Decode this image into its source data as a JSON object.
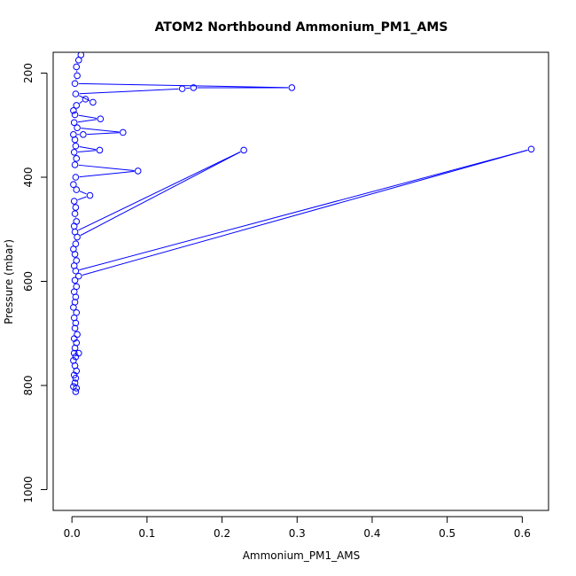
{
  "chart_data": {
    "type": "line",
    "title": "ATOM2 Northbound Ammonium_PM1_AMS",
    "xlabel": "Ammonium_PM1_AMS",
    "ylabel": "Pressure (mbar)",
    "xlim": [
      -0.025,
      0.635
    ],
    "ylim": [
      1040,
      160
    ],
    "x_ticks": [
      0.0,
      0.1,
      0.2,
      0.3,
      0.4,
      0.5,
      0.6
    ],
    "x_tick_labels": [
      "0.0",
      "0.1",
      "0.2",
      "0.3",
      "0.4",
      "0.5",
      "0.6"
    ],
    "y_ticks": [
      200,
      400,
      600,
      800,
      1000
    ],
    "y_tick_labels": [
      "200",
      "400",
      "600",
      "800",
      "1000"
    ],
    "grid": false,
    "series": [
      {
        "color": "#0000ff",
        "marker": "open-circle",
        "points": [
          [
            0.005,
            812
          ],
          [
            0.006,
            805
          ],
          [
            0.002,
            802
          ],
          [
            0.004,
            795
          ],
          [
            0.005,
            786
          ],
          [
            0.003,
            780
          ],
          [
            0.006,
            772
          ],
          [
            0.004,
            762
          ],
          [
            0.002,
            752
          ],
          [
            0.005,
            745
          ],
          [
            0.003,
            738
          ],
          [
            0.009,
            738
          ],
          [
            0.004,
            728
          ],
          [
            0.006,
            718
          ],
          [
            0.003,
            710
          ],
          [
            0.007,
            702
          ],
          [
            0.004,
            690
          ],
          [
            0.005,
            680
          ],
          [
            0.003,
            670
          ],
          [
            0.006,
            660
          ],
          [
            0.002,
            650
          ],
          [
            0.004,
            640
          ],
          [
            0.005,
            630
          ],
          [
            0.003,
            620
          ],
          [
            0.006,
            610
          ],
          [
            0.004,
            598
          ],
          [
            0.009,
            590
          ],
          [
            0.612,
            346
          ],
          [
            0.005,
            580
          ],
          [
            0.003,
            570
          ],
          [
            0.006,
            560
          ],
          [
            0.004,
            548
          ],
          [
            0.002,
            538
          ],
          [
            0.005,
            528
          ],
          [
            0.007,
            515
          ],
          [
            0.229,
            348
          ],
          [
            0.004,
            505
          ],
          [
            0.003,
            494
          ],
          [
            0.006,
            485
          ],
          [
            0.004,
            470
          ],
          [
            0.005,
            458
          ],
          [
            0.003,
            446
          ],
          [
            0.024,
            435
          ],
          [
            0.006,
            424
          ],
          [
            0.002,
            414
          ],
          [
            0.005,
            400
          ],
          [
            0.088,
            388
          ],
          [
            0.004,
            376
          ],
          [
            0.006,
            364
          ],
          [
            0.003,
            352
          ],
          [
            0.037,
            348
          ],
          [
            0.005,
            340
          ],
          [
            0.004,
            328
          ],
          [
            0.002,
            318
          ],
          [
            0.015,
            318
          ],
          [
            0.068,
            314
          ],
          [
            0.007,
            305
          ],
          [
            0.003,
            295
          ],
          [
            0.038,
            288
          ],
          [
            0.004,
            280
          ],
          [
            0.002,
            272
          ],
          [
            0.006,
            262
          ],
          [
            0.018,
            250
          ],
          [
            0.028,
            256
          ],
          [
            0.005,
            240
          ],
          [
            0.147,
            230
          ],
          [
            0.162,
            228
          ],
          [
            0.293,
            228
          ],
          [
            0.004,
            220
          ],
          [
            0.007,
            205
          ],
          [
            0.006,
            188
          ],
          [
            0.009,
            175
          ],
          [
            0.012,
            165
          ]
        ]
      }
    ]
  }
}
